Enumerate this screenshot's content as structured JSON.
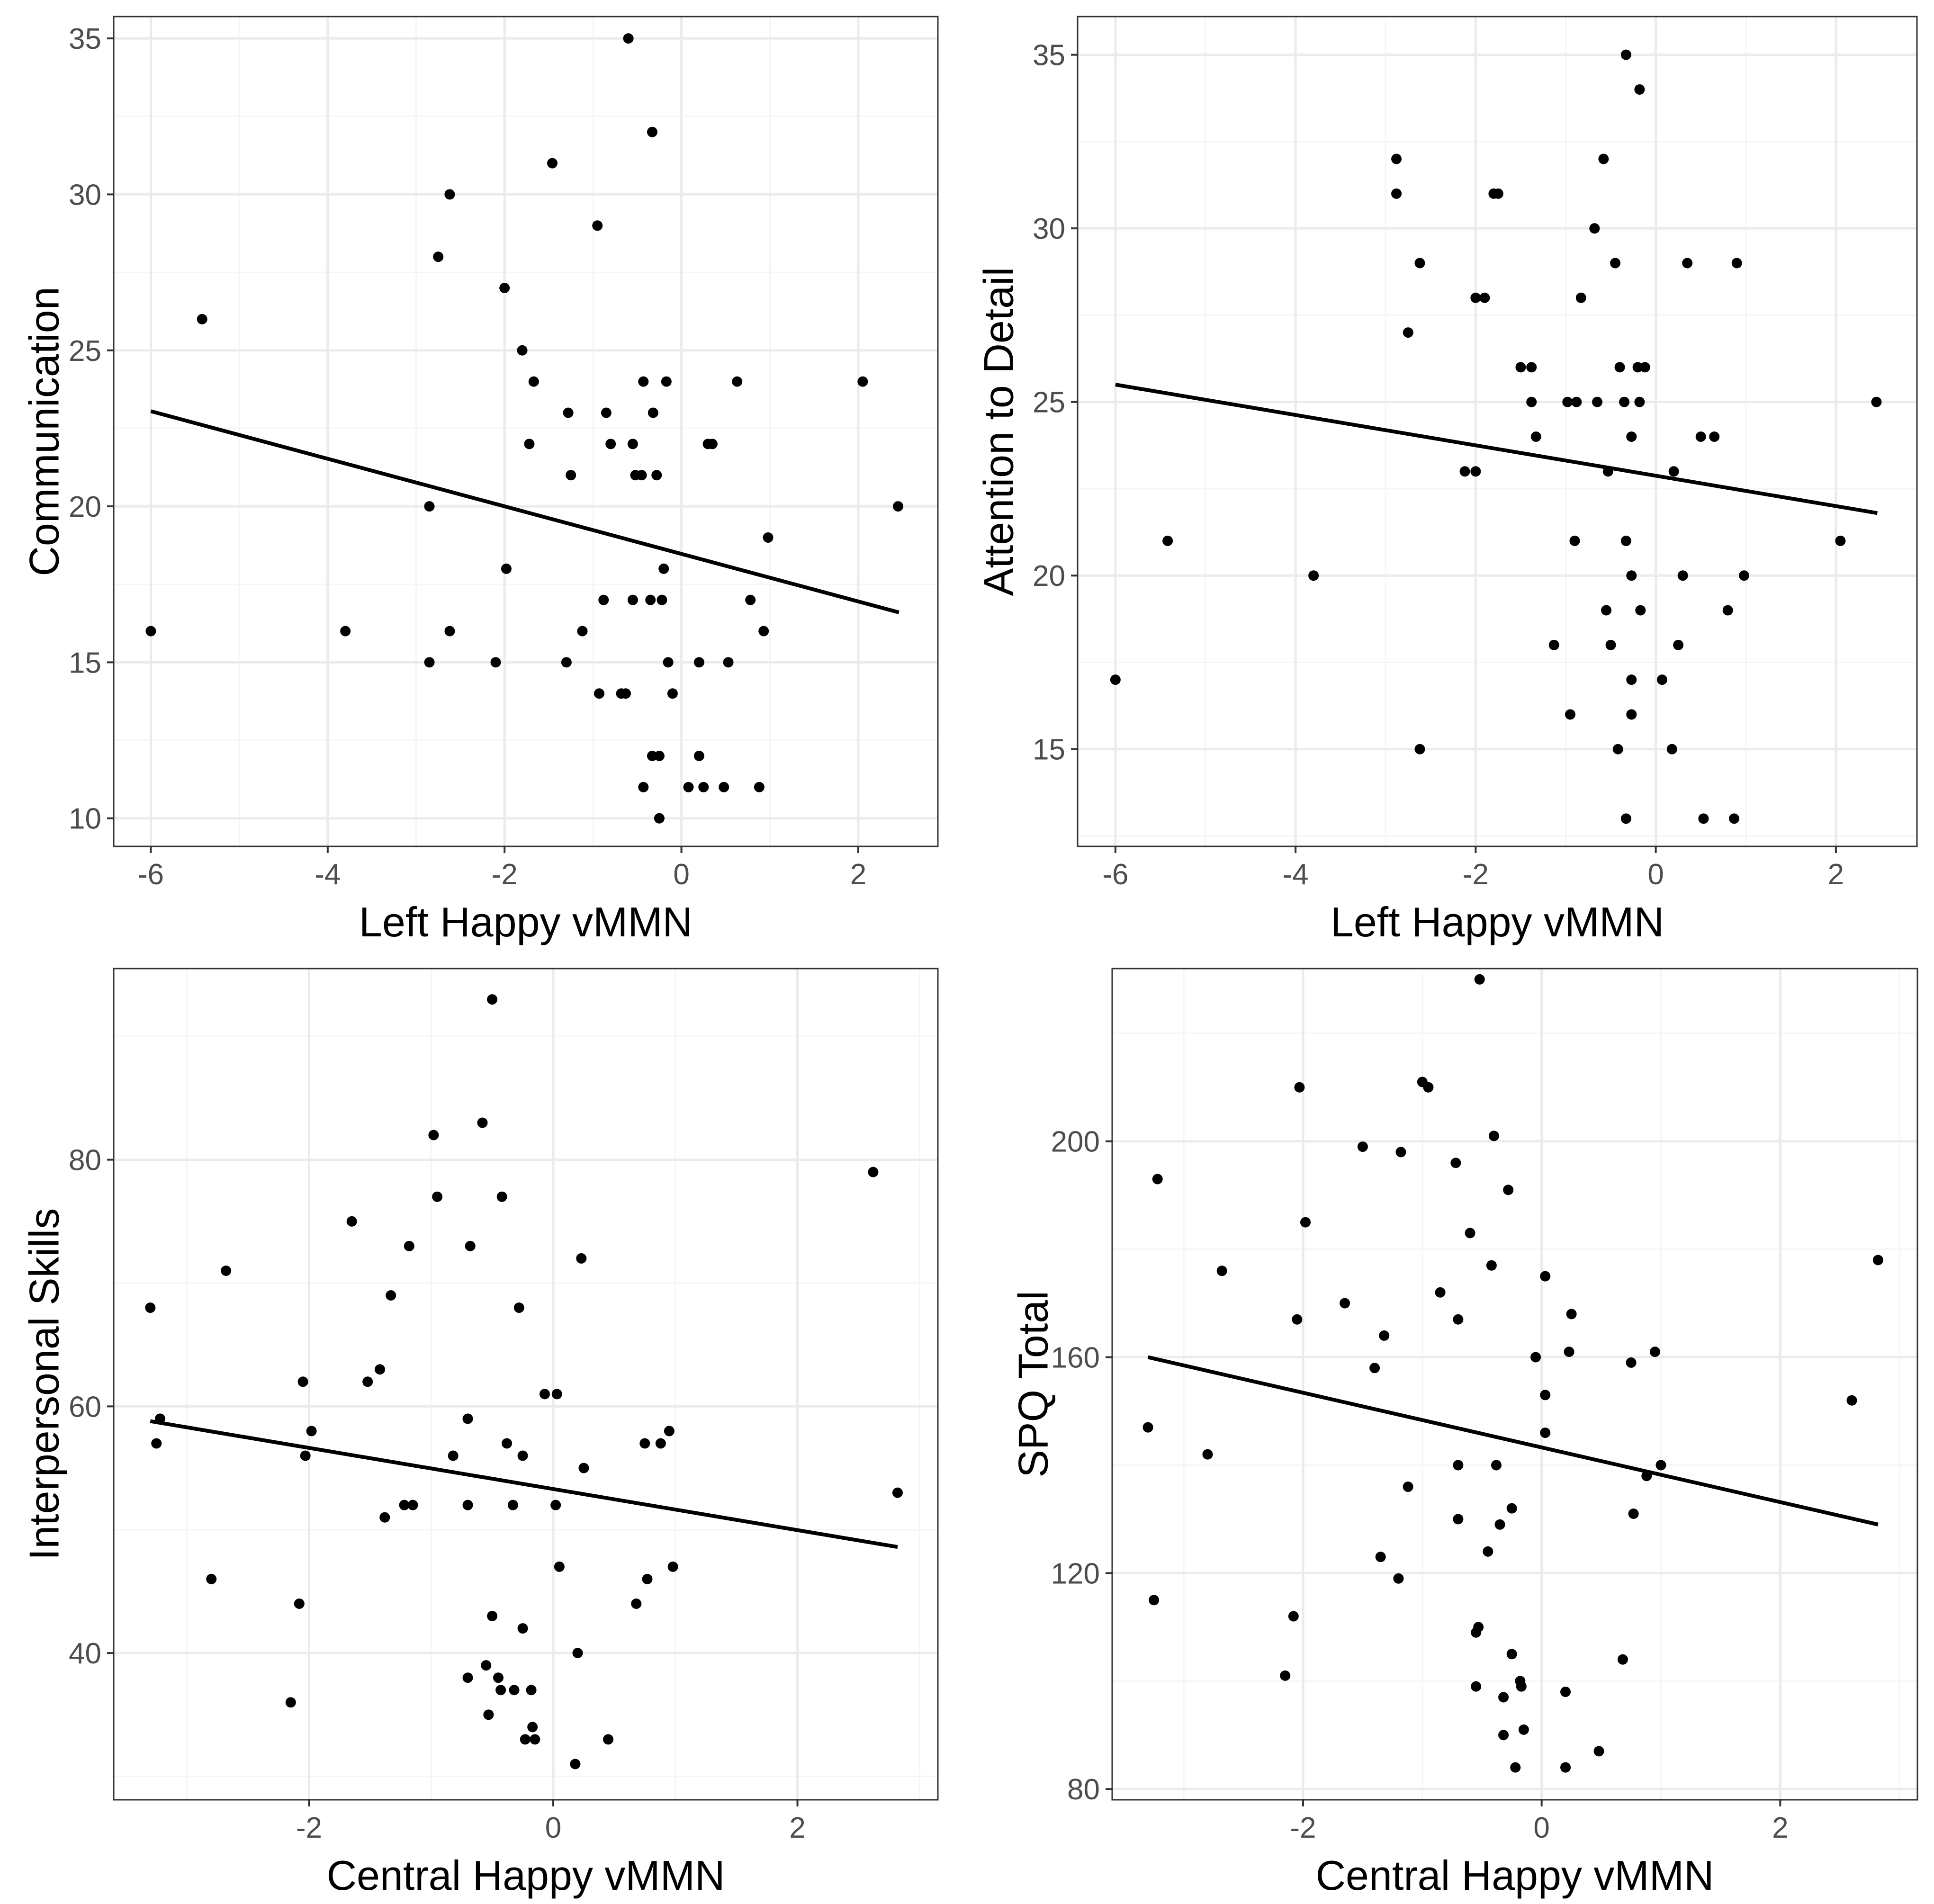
{
  "figure": {
    "background": "#ffffff",
    "panel_background": "#ffffff",
    "panel_border": "#333333",
    "grid_major": "#ebebeb",
    "grid_minor": "#f5f5f5",
    "point_color": "#000000",
    "line_color": "#000000",
    "tick_color": "#4d4d4d"
  },
  "chart_data": [
    {
      "type": "scatter",
      "name": "communication",
      "xlabel": "Left Happy vMMN",
      "ylabel": "Communication",
      "xlim": [
        -6.42,
        2.9
      ],
      "ylim": [
        9.1,
        35.7
      ],
      "xticks": [
        -6,
        -4,
        -2,
        0,
        2
      ],
      "xtick_labels": [
        "-6",
        "-4",
        "-2",
        "0",
        "2"
      ],
      "yticks": [
        10,
        15,
        20,
        25,
        30,
        35
      ],
      "ytick_labels": [
        "10",
        "15",
        "20",
        "25",
        "30",
        "35"
      ],
      "trendline": [
        [
          -6.0,
          23.05
        ],
        [
          2.46,
          16.6
        ]
      ],
      "points": [
        [
          -6.0,
          16
        ],
        [
          -5.42,
          26
        ],
        [
          -3.8,
          16
        ],
        [
          -2.85,
          20
        ],
        [
          -2.85,
          15
        ],
        [
          -2.62,
          30
        ],
        [
          -2.62,
          16
        ],
        [
          -2.75,
          28
        ],
        [
          -2.1,
          15
        ],
        [
          -2.0,
          27
        ],
        [
          -1.98,
          18
        ],
        [
          -1.8,
          25
        ],
        [
          -1.72,
          22
        ],
        [
          -1.67,
          24
        ],
        [
          -1.46,
          31
        ],
        [
          -1.3,
          15
        ],
        [
          -1.28,
          23
        ],
        [
          -1.25,
          21
        ],
        [
          -1.12,
          16
        ],
        [
          -0.95,
          29
        ],
        [
          -0.93,
          14
        ],
        [
          -0.88,
          17
        ],
        [
          -0.85,
          23
        ],
        [
          -0.8,
          22
        ],
        [
          -0.68,
          14
        ],
        [
          -0.63,
          14
        ],
        [
          -0.6,
          35
        ],
        [
          -0.55,
          22
        ],
        [
          -0.55,
          17
        ],
        [
          -0.52,
          21
        ],
        [
          -0.45,
          21
        ],
        [
          -0.43,
          24
        ],
        [
          -0.43,
          11
        ],
        [
          -0.35,
          17
        ],
        [
          -0.33,
          32
        ],
        [
          -0.33,
          12
        ],
        [
          -0.32,
          23
        ],
        [
          -0.28,
          21
        ],
        [
          -0.25,
          12
        ],
        [
          -0.22,
          17
        ],
        [
          -0.25,
          10
        ],
        [
          -0.2,
          18
        ],
        [
          -0.17,
          24
        ],
        [
          -0.15,
          15
        ],
        [
          -0.1,
          14
        ],
        [
          0.08,
          11
        ],
        [
          0.2,
          12
        ],
        [
          0.2,
          15
        ],
        [
          0.25,
          11
        ],
        [
          0.3,
          22
        ],
        [
          0.35,
          22
        ],
        [
          0.48,
          11
        ],
        [
          0.53,
          15
        ],
        [
          0.63,
          24
        ],
        [
          0.78,
          17
        ],
        [
          0.88,
          11
        ],
        [
          0.93,
          16
        ],
        [
          0.98,
          19
        ],
        [
          2.05,
          24
        ],
        [
          2.45,
          20
        ]
      ]
    },
    {
      "type": "scatter",
      "name": "attention-to-detail",
      "xlabel": "Left Happy vMMN",
      "ylabel": "Attention to Detail",
      "xlim": [
        -6.42,
        2.9
      ],
      "ylim": [
        12.2,
        36.1
      ],
      "xticks": [
        -6,
        -4,
        -2,
        0,
        2
      ],
      "xtick_labels": [
        "-6",
        "-4",
        "-2",
        "0",
        "2"
      ],
      "yticks": [
        15,
        20,
        25,
        30,
        35
      ],
      "ytick_labels": [
        "15",
        "20",
        "25",
        "30",
        "35"
      ],
      "trendline": [
        [
          -6.0,
          25.5
        ],
        [
          2.46,
          21.8
        ]
      ],
      "points": [
        [
          -6.0,
          17
        ],
        [
          -5.42,
          21
        ],
        [
          -3.8,
          20
        ],
        [
          -2.88,
          32
        ],
        [
          -2.88,
          31
        ],
        [
          -2.75,
          27
        ],
        [
          -2.62,
          29
        ],
        [
          -2.62,
          15
        ],
        [
          -2.12,
          23
        ],
        [
          -2.0,
          23
        ],
        [
          -2.0,
          28
        ],
        [
          -1.9,
          28
        ],
        [
          -1.8,
          31
        ],
        [
          -1.75,
          31
        ],
        [
          -1.5,
          26
        ],
        [
          -1.38,
          26
        ],
        [
          -1.38,
          25
        ],
        [
          -1.33,
          24
        ],
        [
          -1.13,
          18
        ],
        [
          -0.98,
          25
        ],
        [
          -0.95,
          16
        ],
        [
          -0.9,
          21
        ],
        [
          -0.88,
          25
        ],
        [
          -0.83,
          28
        ],
        [
          -0.68,
          30
        ],
        [
          -0.65,
          25
        ],
        [
          -0.58,
          32
        ],
        [
          -0.55,
          19
        ],
        [
          -0.53,
          23
        ],
        [
          -0.5,
          18
        ],
        [
          -0.45,
          29
        ],
        [
          -0.42,
          15
        ],
        [
          -0.4,
          26
        ],
        [
          -0.35,
          25
        ],
        [
          -0.33,
          35
        ],
        [
          -0.33,
          21
        ],
        [
          -0.33,
          13
        ],
        [
          -0.27,
          24
        ],
        [
          -0.27,
          20
        ],
        [
          -0.27,
          17
        ],
        [
          -0.27,
          16
        ],
        [
          -0.2,
          26
        ],
        [
          -0.18,
          34
        ],
        [
          -0.18,
          25
        ],
        [
          -0.17,
          19
        ],
        [
          -0.12,
          26
        ],
        [
          0.07,
          17
        ],
        [
          0.18,
          15
        ],
        [
          0.2,
          23
        ],
        [
          0.25,
          18
        ],
        [
          0.3,
          20
        ],
        [
          0.35,
          29
        ],
        [
          0.5,
          24
        ],
        [
          0.53,
          13
        ],
        [
          0.65,
          24
        ],
        [
          0.8,
          19
        ],
        [
          0.87,
          13
        ],
        [
          0.9,
          29
        ],
        [
          0.98,
          20
        ],
        [
          2.05,
          21
        ],
        [
          2.45,
          25
        ]
      ]
    },
    {
      "type": "scatter",
      "name": "interpersonal-skills",
      "xlabel": "Central Happy vMMN",
      "ylabel": "Interpersonal Skills",
      "xlim": [
        -3.6,
        3.15
      ],
      "ylim": [
        28.1,
        95.5
      ],
      "xticks": [
        -2,
        0,
        2
      ],
      "xtick_labels": [
        "-2",
        "0",
        "2"
      ],
      "yticks": [
        40,
        60,
        80
      ],
      "ytick_labels": [
        "40",
        "60",
        "80"
      ],
      "trendline": [
        [
          -3.3,
          58.8
        ],
        [
          2.82,
          48.6
        ]
      ],
      "points": [
        [
          -3.3,
          68
        ],
        [
          -3.25,
          57
        ],
        [
          -3.22,
          59
        ],
        [
          -2.8,
          46
        ],
        [
          -2.68,
          71
        ],
        [
          -2.15,
          36
        ],
        [
          -2.08,
          44
        ],
        [
          -2.05,
          62
        ],
        [
          -2.03,
          56
        ],
        [
          -1.98,
          58
        ],
        [
          -1.65,
          75
        ],
        [
          -1.52,
          62
        ],
        [
          -1.42,
          63
        ],
        [
          -1.38,
          51
        ],
        [
          -1.33,
          69
        ],
        [
          -1.22,
          52
        ],
        [
          -1.18,
          73
        ],
        [
          -1.15,
          52
        ],
        [
          -0.82,
          56
        ],
        [
          -0.98,
          82
        ],
        [
          -0.95,
          77
        ],
        [
          -0.7,
          38
        ],
        [
          -0.7,
          52
        ],
        [
          -0.7,
          59
        ],
        [
          -0.68,
          73
        ],
        [
          -0.58,
          83
        ],
        [
          -0.55,
          39
        ],
        [
          -0.53,
          35
        ],
        [
          -0.5,
          93
        ],
        [
          -0.5,
          43
        ],
        [
          -0.45,
          38
        ],
        [
          -0.43,
          37
        ],
        [
          -0.42,
          77
        ],
        [
          -0.38,
          57
        ],
        [
          -0.33,
          52
        ],
        [
          -0.32,
          37
        ],
        [
          -0.28,
          68
        ],
        [
          -0.25,
          56
        ],
        [
          -0.25,
          42
        ],
        [
          -0.23,
          33
        ],
        [
          -0.18,
          37
        ],
        [
          -0.17,
          34
        ],
        [
          -0.15,
          33
        ],
        [
          -0.07,
          61
        ],
        [
          0.02,
          52
        ],
        [
          0.03,
          61
        ],
        [
          0.05,
          47
        ],
        [
          0.18,
          31
        ],
        [
          0.2,
          40
        ],
        [
          0.23,
          72
        ],
        [
          0.25,
          55
        ],
        [
          0.45,
          33
        ],
        [
          0.68,
          44
        ],
        [
          0.75,
          57
        ],
        [
          0.77,
          46
        ],
        [
          0.88,
          57
        ],
        [
          0.95,
          58
        ],
        [
          0.98,
          47
        ],
        [
          2.62,
          79
        ],
        [
          2.82,
          53
        ]
      ]
    },
    {
      "type": "scatter",
      "name": "spq-total",
      "xlabel": "Central Happy vMMN",
      "ylabel": "SPQ Total",
      "xlim": [
        -3.6,
        3.15
      ],
      "ylim": [
        78.0,
        232.0
      ],
      "xticks": [
        -2,
        0,
        2
      ],
      "xtick_labels": [
        "-2",
        "0",
        "2"
      ],
      "yticks": [
        80,
        120,
        160,
        200
      ],
      "ytick_labels": [
        "80",
        "120",
        "160",
        "200"
      ],
      "trendline": [
        [
          -3.3,
          160.0
        ],
        [
          2.82,
          129.0
        ]
      ],
      "points": [
        [
          -3.3,
          147
        ],
        [
          -3.25,
          115
        ],
        [
          -3.22,
          193
        ],
        [
          -2.8,
          142
        ],
        [
          -2.68,
          176
        ],
        [
          -2.15,
          101
        ],
        [
          -2.08,
          112
        ],
        [
          -2.05,
          167
        ],
        [
          -2.03,
          210
        ],
        [
          -1.98,
          185
        ],
        [
          -1.65,
          170
        ],
        [
          -1.5,
          199
        ],
        [
          -1.4,
          158
        ],
        [
          -1.35,
          123
        ],
        [
          -1.32,
          164
        ],
        [
          -1.2,
          119
        ],
        [
          -1.18,
          198
        ],
        [
          -1.12,
          136
        ],
        [
          -1.0,
          211
        ],
        [
          -0.95,
          210
        ],
        [
          -0.85,
          172
        ],
        [
          -0.72,
          196
        ],
        [
          -0.7,
          167
        ],
        [
          -0.7,
          140
        ],
        [
          -0.7,
          130
        ],
        [
          -0.6,
          183
        ],
        [
          -0.55,
          99
        ],
        [
          -0.55,
          109
        ],
        [
          -0.53,
          110
        ],
        [
          -0.52,
          230
        ],
        [
          -0.45,
          124
        ],
        [
          -0.42,
          177
        ],
        [
          -0.4,
          201
        ],
        [
          -0.38,
          140
        ],
        [
          -0.35,
          129
        ],
        [
          -0.32,
          97
        ],
        [
          -0.32,
          90
        ],
        [
          -0.28,
          191
        ],
        [
          -0.25,
          132
        ],
        [
          -0.25,
          105
        ],
        [
          -0.22,
          84
        ],
        [
          -0.18,
          100
        ],
        [
          -0.17,
          99
        ],
        [
          -0.15,
          91
        ],
        [
          -0.05,
          160
        ],
        [
          0.03,
          175
        ],
        [
          0.03,
          146
        ],
        [
          0.03,
          153
        ],
        [
          0.2,
          84
        ],
        [
          0.2,
          98
        ],
        [
          0.23,
          161
        ],
        [
          0.25,
          168
        ],
        [
          0.48,
          87
        ],
        [
          0.68,
          104
        ],
        [
          0.75,
          159
        ],
        [
          0.77,
          131
        ],
        [
          0.88,
          138
        ],
        [
          0.95,
          161
        ],
        [
          1.0,
          140
        ],
        [
          2.6,
          152
        ],
        [
          2.82,
          178
        ]
      ]
    }
  ]
}
